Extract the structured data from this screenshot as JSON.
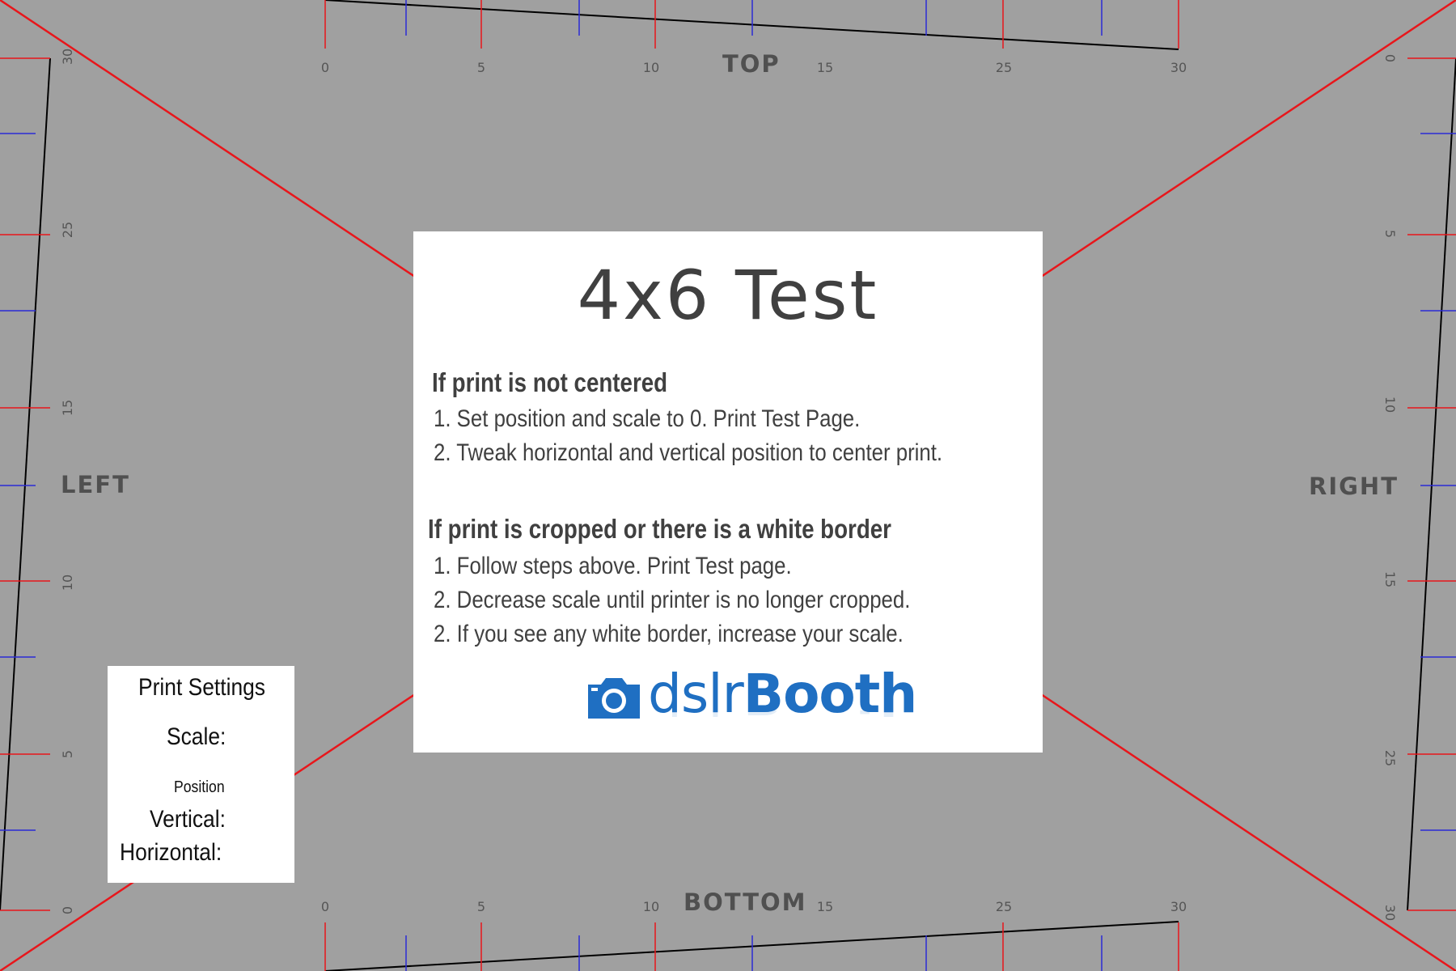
{
  "labels": {
    "top": "TOP",
    "bottom": "BOTTOM",
    "left": "LEFT",
    "right": "RIGHT"
  },
  "rulers": {
    "top_numbers": [
      "0",
      "5",
      "10",
      "15",
      "25",
      "30"
    ],
    "bottom_numbers": [
      "0",
      "5",
      "10",
      "15",
      "25",
      "30"
    ],
    "left_numbers": [
      "30",
      "25",
      "15",
      "10",
      "5",
      "0"
    ],
    "right_numbers": [
      "0",
      "5",
      "10",
      "15",
      "25",
      "30"
    ]
  },
  "colors": {
    "background": "#a0a0a0",
    "diagonal": "#e8161b",
    "tick_red": "#e8161b",
    "tick_blue": "#2b2bd6",
    "frame": "#000000",
    "brand": "#1f6fc2"
  },
  "card": {
    "title": "4x6 Test",
    "section1": {
      "heading": "If print is not centered",
      "steps": [
        "1. Set position and scale to 0. Print Test Page.",
        "2. Tweak horizontal and vertical position to center print."
      ]
    },
    "section2": {
      "heading": "If print is cropped or there is a white border",
      "steps": [
        "1. Follow steps above. Print Test page.",
        "2. Decrease scale until printer is no longer cropped.",
        "2. If you see any white border, increase your scale."
      ]
    },
    "logo": {
      "icon": "camera-icon",
      "text_light": "dslr",
      "text_bold": "Booth"
    }
  },
  "settings": {
    "title": "Print Settings",
    "scale_label": "Scale:",
    "position_label": "Position",
    "vertical_label": "Vertical:",
    "horizontal_label": "Horizontal:"
  }
}
